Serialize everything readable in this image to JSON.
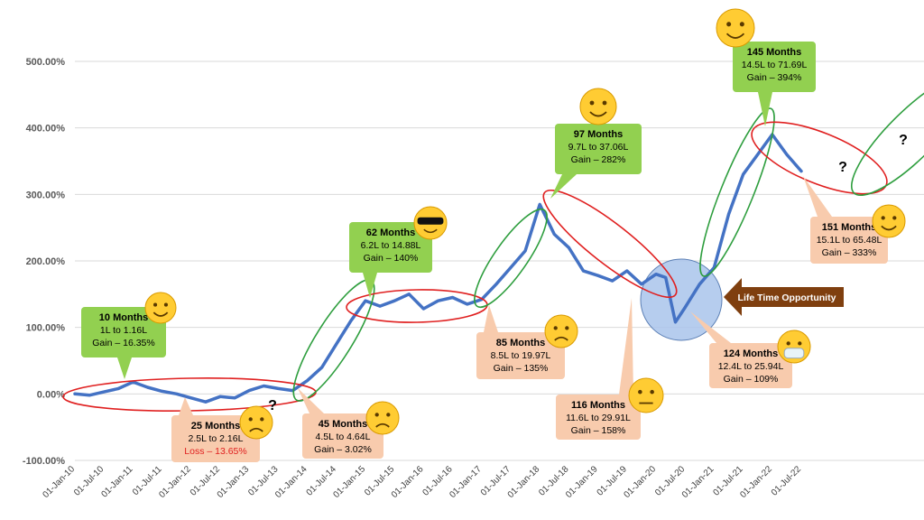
{
  "chart_data": {
    "type": "line",
    "title": "",
    "xlabel": "",
    "ylabel": "",
    "ylim": [
      -100,
      500
    ],
    "yticks": [
      "-100.00%",
      "0.00%",
      "100.00%",
      "200.00%",
      "300.00%",
      "400.00%",
      "500.00%"
    ],
    "xticks": [
      "01-Jan-10",
      "01-Jul-10",
      "01-Jan-11",
      "01-Jul-11",
      "01-Jan-12",
      "01-Jul-12",
      "01-Jan-13",
      "01-Jul-13",
      "01-Jan-14",
      "01-Jul-14",
      "01-Jan-15",
      "01-Jul-15",
      "01-Jan-16",
      "01-Jul-16",
      "01-Jan-17",
      "01-Jul-17",
      "01-Jan-18",
      "01-Jul-18",
      "01-Jan-19",
      "01-Jul-19",
      "01-Jan-20",
      "01-Jul-20",
      "01-Jan-21",
      "01-Jul-21",
      "01-Jan-22",
      "01-Jul-22"
    ],
    "grid": true,
    "line_color": "#4472c4",
    "series": [
      {
        "x": [
          "2010-01",
          "2010-04",
          "2010-07",
          "2010-10",
          "2011-01",
          "2011-04",
          "2011-07",
          "2011-10",
          "2012-01",
          "2012-04",
          "2012-07",
          "2012-10",
          "2013-01",
          "2013-04",
          "2013-07",
          "2013-10",
          "2014-01",
          "2014-04",
          "2014-07",
          "2014-10",
          "2015-01",
          "2015-04",
          "2015-07",
          "2015-10",
          "2016-01",
          "2016-04",
          "2016-07",
          "2016-10",
          "2017-01",
          "2017-04",
          "2017-07",
          "2017-10",
          "2018-01",
          "2018-04",
          "2018-07",
          "2018-10",
          "2019-01",
          "2019-04",
          "2019-07",
          "2019-10",
          "2020-01",
          "2020-03",
          "2020-05",
          "2020-07",
          "2020-10",
          "2021-01",
          "2021-04",
          "2021-07",
          "2021-10",
          "2022-01",
          "2022-04",
          "2022-07"
        ],
        "y": [
          0,
          -2,
          3,
          8,
          18,
          10,
          4,
          0,
          -6,
          -12,
          -4,
          -6,
          5,
          12,
          8,
          5,
          20,
          40,
          75,
          110,
          140,
          132,
          140,
          150,
          128,
          140,
          145,
          135,
          142,
          165,
          190,
          215,
          285,
          240,
          220,
          185,
          178,
          170,
          185,
          165,
          180,
          175,
          108,
          130,
          165,
          190,
          270,
          330,
          360,
          390,
          360,
          335
        ]
      }
    ],
    "annotations": [
      {
        "title": "10 Months",
        "line1": "1L to 1.16L",
        "line2": "Gain – 16.35%",
        "color": "#92d050"
      },
      {
        "title": "25 Months",
        "line1": "2.5L to 2.16L",
        "line2": "Loss – 13.65%",
        "color": "#f8cbad"
      },
      {
        "title": "45 Months",
        "line1": "4.5L to 4.64L",
        "line2": "Gain – 3.02%",
        "color": "#f8cbad"
      },
      {
        "title": "62 Months",
        "line1": "6.2L to 14.88L",
        "line2": "Gain – 140%",
        "color": "#92d050"
      },
      {
        "title": "85 Months",
        "line1": "8.5L to 19.97L",
        "line2": "Gain – 135%",
        "color": "#f8cbad"
      },
      {
        "title": "97 Months",
        "line1": "9.7L to 37.06L",
        "line2": "Gain – 282%",
        "color": "#92d050"
      },
      {
        "title": "116 Months",
        "line1": "11.6L to 29.91L",
        "line2": "Gain – 158%",
        "color": "#f8cbad"
      },
      {
        "title": "124 Months",
        "line1": "12.4L to 25.94L",
        "line2": "Gain – 109%",
        "color": "#f8cbad"
      },
      {
        "title": "145 Months",
        "line1": "14.5L to 71.69L",
        "line2": "Gain – 394%",
        "color": "#92d050"
      },
      {
        "title": "151 Months",
        "line1": "15.1L to 65.48L",
        "line2": "Gain – 333%",
        "color": "#f8cbad"
      }
    ],
    "opportunity_label": "Life Time Opportunity",
    "question_marks": [
      "?",
      "?",
      "?"
    ]
  }
}
